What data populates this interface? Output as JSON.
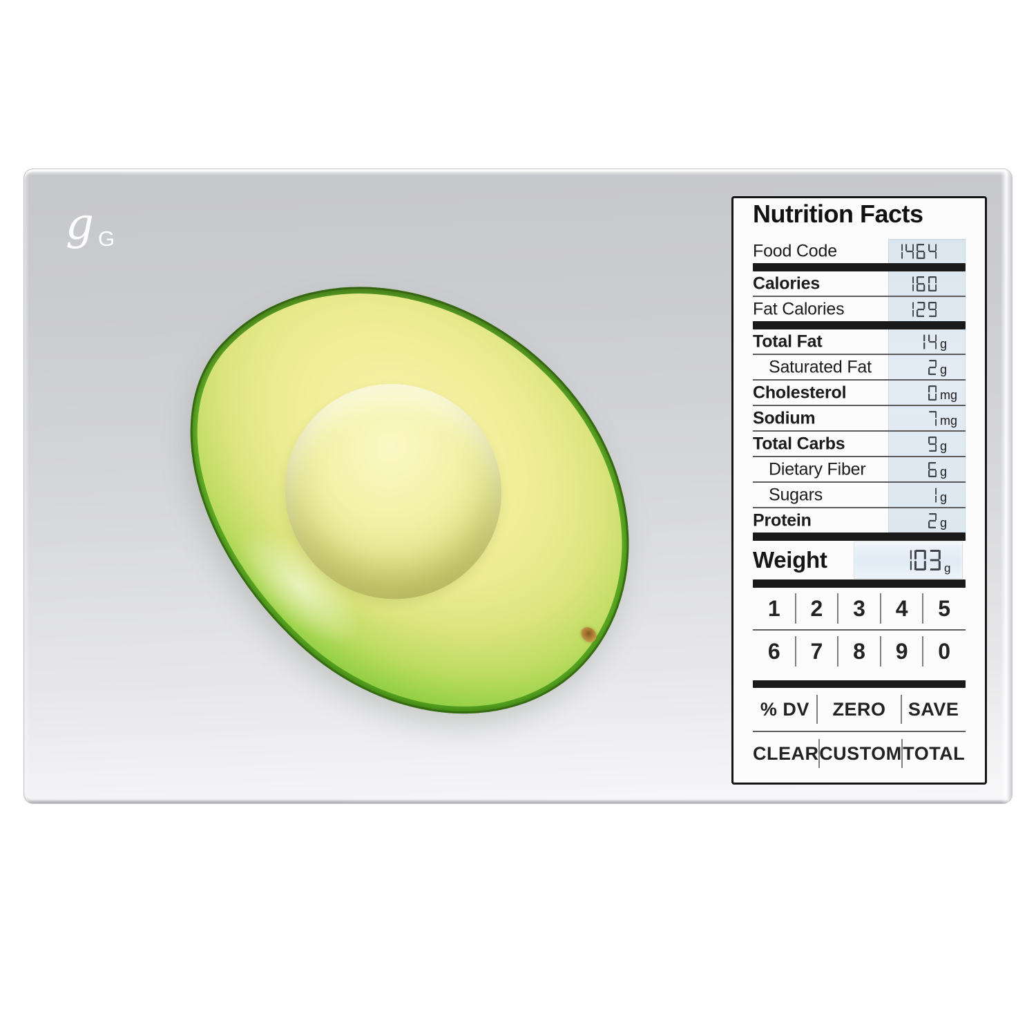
{
  "device": {
    "brand_logo": {
      "script_g": "g",
      "cap_g": "G"
    },
    "display": {
      "title": "Nutrition Facts",
      "rows": [
        {
          "label": "Food Code",
          "value": "1464",
          "unit": "",
          "bold": false,
          "indent": false,
          "after": "thick"
        },
        {
          "label": "Calories",
          "value": "160",
          "unit": "",
          "bold": true,
          "indent": false,
          "after": "thin"
        },
        {
          "label": "Fat Calories",
          "value": "129",
          "unit": "",
          "bold": false,
          "indent": false,
          "after": "thick"
        },
        {
          "label": "Total Fat",
          "value": "14",
          "unit": "g",
          "bold": true,
          "indent": false,
          "after": "thin"
        },
        {
          "label": "Saturated Fat",
          "value": "2",
          "unit": "g",
          "bold": false,
          "indent": true,
          "after": "thin"
        },
        {
          "label": "Cholesterol",
          "value": "0",
          "unit": "mg",
          "bold": true,
          "indent": false,
          "after": "thin"
        },
        {
          "label": "Sodium",
          "value": "7",
          "unit": "mg",
          "bold": true,
          "indent": false,
          "after": "thin"
        },
        {
          "label": "Total Carbs",
          "value": "9",
          "unit": "g",
          "bold": true,
          "indent": false,
          "after": "thin"
        },
        {
          "label": "Dietary Fiber",
          "value": "6",
          "unit": "g",
          "bold": false,
          "indent": true,
          "after": "thin"
        },
        {
          "label": "Sugars",
          "value": "1",
          "unit": "g",
          "bold": false,
          "indent": true,
          "after": "thin"
        },
        {
          "label": "Protein",
          "value": "2",
          "unit": "g",
          "bold": true,
          "indent": false,
          "after": "thick"
        }
      ],
      "weight": {
        "label": "Weight",
        "value": "103",
        "unit": "g"
      },
      "keypad": [
        [
          "1",
          "2",
          "3",
          "4",
          "5"
        ],
        [
          "6",
          "7",
          "8",
          "9",
          "0"
        ]
      ],
      "function_keys": [
        [
          "% DV",
          "ZERO",
          "SAVE"
        ],
        [
          "CLEAR",
          "CUSTOM",
          "TOTAL"
        ]
      ]
    },
    "colors": {
      "lcd_window": "#e2ebf3",
      "lcd_segment": "#3f444a",
      "divider_bar": "#1a1a1a",
      "panel_background": "#fcfcfd",
      "glass_top": "#c6c7cb",
      "glass_bottom": "#f8f8fa",
      "avocado_rim": "#63b328",
      "avocado_flesh": "#f3ef9d"
    },
    "scene_item": "avocado-half"
  }
}
